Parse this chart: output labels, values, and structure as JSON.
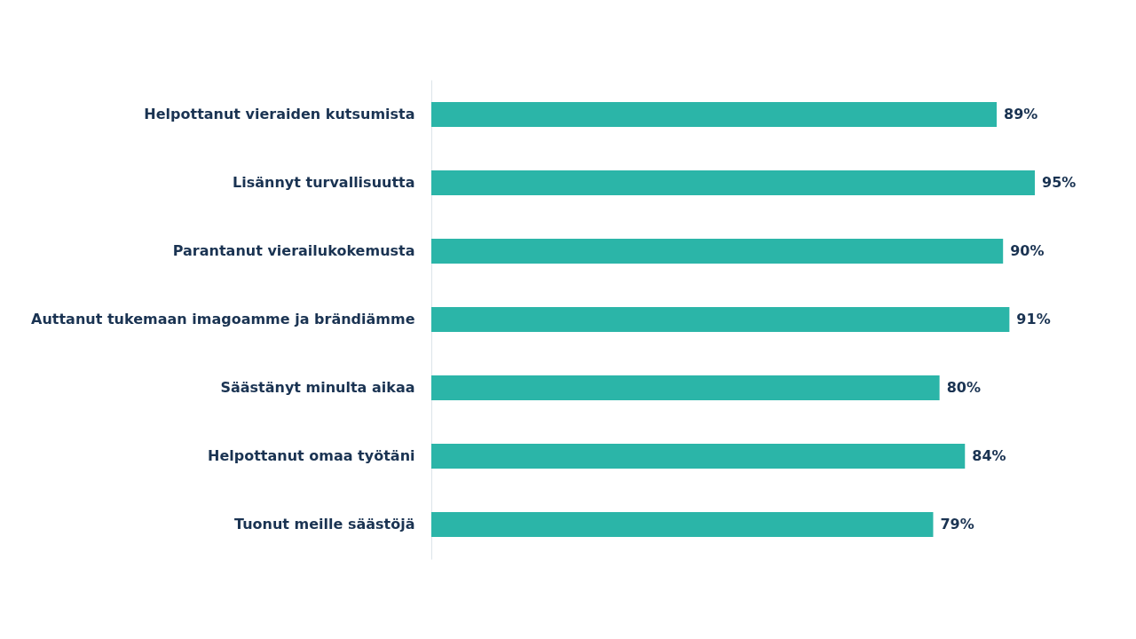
{
  "chart_data": {
    "type": "bar",
    "orientation": "horizontal",
    "categories": [
      "Helpottanut vieraiden kutsumista",
      "Lisännyt turvallisuutta",
      "Parantanut vierailukokemusta",
      "Auttanut tukemaan imagoamme ja brändiämme",
      "Säästänyt minulta aikaa",
      "Helpottanut omaa työtäni",
      "Tuonut meille säästöjä"
    ],
    "values": [
      89,
      95,
      90,
      91,
      80,
      84,
      79
    ],
    "value_labels": [
      "89%",
      "95%",
      "90%",
      "91%",
      "80%",
      "84%",
      "79%"
    ],
    "color": "#2bb5a8"
  }
}
